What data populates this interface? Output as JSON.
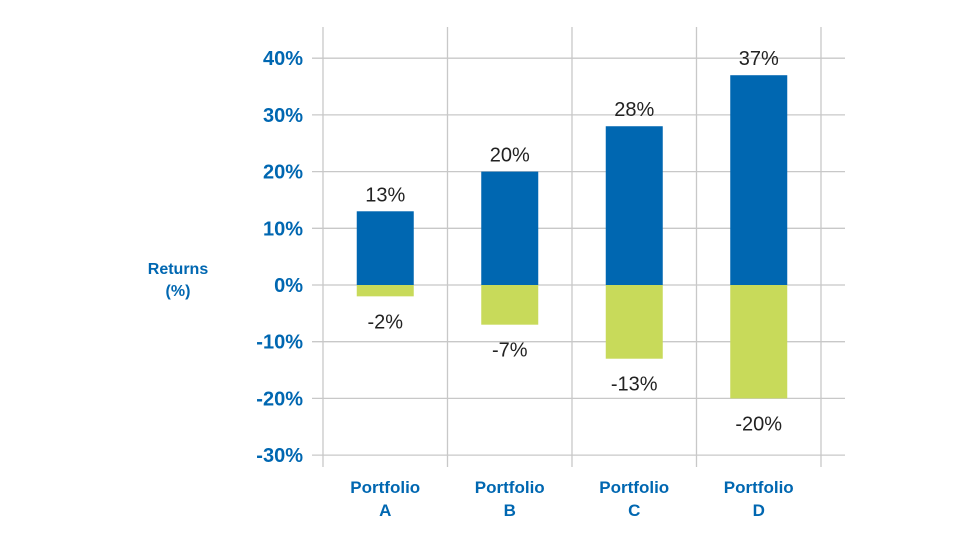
{
  "chart_data": {
    "type": "bar",
    "stacked": true,
    "categories": [
      [
        "Portfolio",
        "A"
      ],
      [
        "Portfolio",
        "B"
      ],
      [
        "Portfolio",
        "C"
      ],
      [
        "Portfolio",
        "D"
      ]
    ],
    "series": [
      {
        "values": [
          13,
          20,
          28,
          37
        ],
        "color": "#0067b1"
      },
      {
        "values": [
          -2,
          -7,
          -13,
          -20
        ],
        "color": "#c8da5a"
      }
    ],
    "data_labels": {
      "positive": [
        "13%",
        "20%",
        "28%",
        "37%"
      ],
      "negative": [
        "-2%",
        "-7%",
        "-13%",
        "-20%"
      ]
    },
    "ylabel": [
      "Returns",
      "(%)"
    ],
    "yticks": [
      40,
      30,
      20,
      10,
      0,
      -10,
      -20,
      -30
    ],
    "ytick_labels": [
      "40%",
      "30%",
      "20%",
      "10%",
      "0%",
      "-10%",
      "-20%",
      "-30%"
    ],
    "ylim": [
      -32,
      44
    ],
    "grid": true,
    "colors": {
      "axis_text": "#0067b1",
      "data_label_text": "#222222",
      "grid": "#c8c8c8"
    }
  }
}
